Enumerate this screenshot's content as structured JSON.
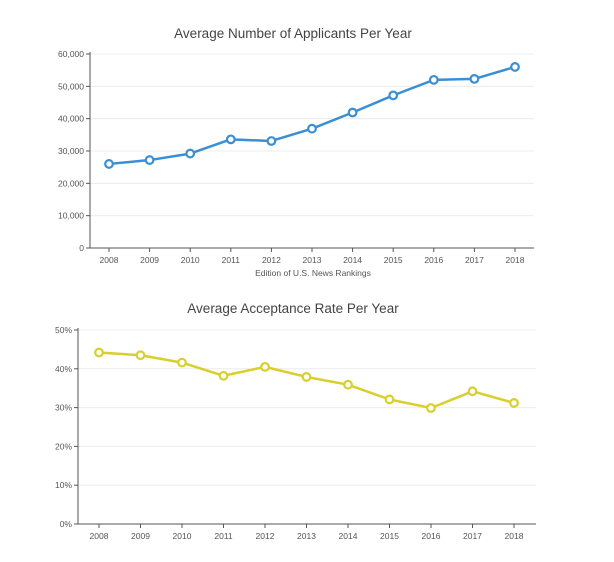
{
  "chart_data": [
    {
      "type": "line",
      "title": "Average Number of Applicants Per Year",
      "xlabel": "Edition of U.S. News Rankings",
      "ylabel": "",
      "categories": [
        "2008",
        "2009",
        "2010",
        "2011",
        "2012",
        "2013",
        "2014",
        "2015",
        "2016",
        "2017",
        "2018"
      ],
      "yticks": [
        "0",
        "10,000",
        "20,000",
        "30,000",
        "40,000",
        "50,000",
        "60,000"
      ],
      "ylim": [
        0,
        60000
      ],
      "color": "#3a8fd4",
      "grid": true,
      "series": [
        {
          "values": [
            26000,
            27200,
            29200,
            33600,
            33100,
            36900,
            41900,
            47200,
            52000,
            52300,
            56000
          ]
        }
      ]
    },
    {
      "type": "line",
      "title": "Average Acceptance Rate Per Year",
      "xlabel": "",
      "ylabel": "",
      "categories": [
        "2008",
        "2009",
        "2010",
        "2011",
        "2012",
        "2013",
        "2014",
        "2015",
        "2016",
        "2017",
        "2018"
      ],
      "yticks": [
        "0%",
        "10%",
        "20%",
        "30%",
        "40%",
        "50%"
      ],
      "ylim": [
        0,
        50
      ],
      "color": "#d9cf2b",
      "grid": true,
      "series": [
        {
          "values": [
            44.2,
            43.5,
            41.6,
            38.2,
            40.5,
            37.9,
            35.9,
            32.1,
            29.9,
            34.2,
            31.2
          ]
        }
      ]
    }
  ]
}
